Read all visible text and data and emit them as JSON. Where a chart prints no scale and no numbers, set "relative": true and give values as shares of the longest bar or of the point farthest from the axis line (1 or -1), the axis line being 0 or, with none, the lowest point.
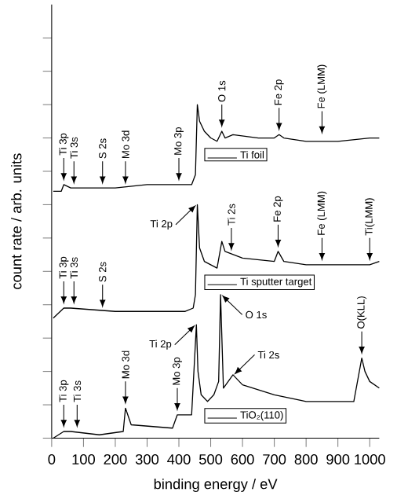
{
  "chart_data": {
    "type": "line",
    "relative": true,
    "xlabel": "binding energy / eV",
    "ylabel": "count rate / arb. units",
    "xlim": [
      0,
      1030
    ],
    "xticks": [
      0,
      100,
      200,
      300,
      400,
      500,
      600,
      700,
      800,
      900,
      1000
    ],
    "legend": "right",
    "grid": false,
    "marker": "none",
    "line_style": "solid",
    "series": [
      {
        "name": "Ti foil",
        "color": "#000000",
        "x": [
          5,
          30,
          38,
          60,
          100,
          200,
          300,
          400,
          440,
          452,
          458,
          465,
          480,
          500,
          520,
          535,
          545,
          570,
          650,
          700,
          715,
          730,
          800,
          900,
          1000,
          1030
        ],
        "values": [
          0.74,
          0.74,
          0.76,
          0.75,
          0.75,
          0.75,
          0.76,
          0.76,
          0.76,
          0.79,
          1.0,
          0.95,
          0.92,
          0.9,
          0.89,
          0.92,
          0.9,
          0.91,
          0.9,
          0.9,
          0.91,
          0.9,
          0.89,
          0.89,
          0.9,
          0.9
        ]
      },
      {
        "name": "Ti sputter target",
        "color": "#000000",
        "x": [
          5,
          38,
          60,
          200,
          420,
          445,
          452,
          458,
          465,
          480,
          500,
          520,
          535,
          545,
          600,
          700,
          712,
          730,
          800,
          900,
          1000,
          1030
        ],
        "values": [
          0.36,
          0.39,
          0.39,
          0.38,
          0.38,
          0.39,
          0.43,
          0.7,
          0.57,
          0.53,
          0.52,
          0.51,
          0.59,
          0.56,
          0.54,
          0.53,
          0.56,
          0.53,
          0.52,
          0.52,
          0.52,
          0.53
        ]
      },
      {
        "name": "TiO₂(110)",
        "color": "#000000",
        "x": [
          5,
          38,
          60,
          150,
          225,
          232,
          250,
          380,
          395,
          410,
          440,
          455,
          460,
          470,
          490,
          510,
          525,
          531,
          540,
          570,
          600,
          700,
          800,
          900,
          950,
          975,
          985,
          1000,
          1030
        ],
        "values": [
          0.0,
          0.02,
          0.02,
          0.01,
          0.02,
          0.09,
          0.04,
          0.03,
          0.07,
          0.07,
          0.07,
          0.34,
          0.2,
          0.13,
          0.11,
          0.13,
          0.17,
          0.43,
          0.15,
          0.19,
          0.16,
          0.13,
          0.11,
          0.11,
          0.11,
          0.24,
          0.2,
          0.17,
          0.15
        ]
      }
    ],
    "annotations": [
      {
        "text": "Ti 3p",
        "x": 38,
        "y": 0.76
      },
      {
        "text": "Ti 3s",
        "x": 70,
        "y": 0.75
      },
      {
        "text": "S 2s",
        "x": 160,
        "y": 0.75
      },
      {
        "text": "Mo 3d",
        "x": 232,
        "y": 0.75
      },
      {
        "text": "Mo 3p",
        "x": 400,
        "y": 0.76
      },
      {
        "text": "O 1s",
        "x": 535,
        "y": 0.92
      },
      {
        "text": "Fe 2p",
        "x": 715,
        "y": 0.91
      },
      {
        "text": "Fe (LMM)",
        "x": 850,
        "y": 0.9
      },
      {
        "text": "Ti 2p",
        "x": 458,
        "y": 0.7
      },
      {
        "text": "Ti 3p",
        "x": 38,
        "y": 0.39
      },
      {
        "text": "Ti 3s",
        "x": 70,
        "y": 0.39
      },
      {
        "text": "S 2s",
        "x": 160,
        "y": 0.38
      },
      {
        "text": "Ti 2s",
        "x": 565,
        "y": 0.55
      },
      {
        "text": "Fe 2p",
        "x": 712,
        "y": 0.56
      },
      {
        "text": "Fe (LMM)",
        "x": 850,
        "y": 0.52
      },
      {
        "text": "Ti(LMM)",
        "x": 1000,
        "y": 0.52
      },
      {
        "text": "Ti 3p",
        "x": 38,
        "y": 0.02
      },
      {
        "text": "Ti 3s",
        "x": 80,
        "y": 0.02
      },
      {
        "text": "Mo 3d",
        "x": 232,
        "y": 0.09
      },
      {
        "text": "Mo 3p",
        "x": 395,
        "y": 0.07
      },
      {
        "text": "Ti 2p",
        "x": 455,
        "y": 0.34
      },
      {
        "text": "O 1s",
        "x": 531,
        "y": 0.43
      },
      {
        "text": "Ti 2s",
        "x": 570,
        "y": 0.19
      },
      {
        "text": "O(KLL)",
        "x": 975,
        "y": 0.24
      }
    ]
  }
}
